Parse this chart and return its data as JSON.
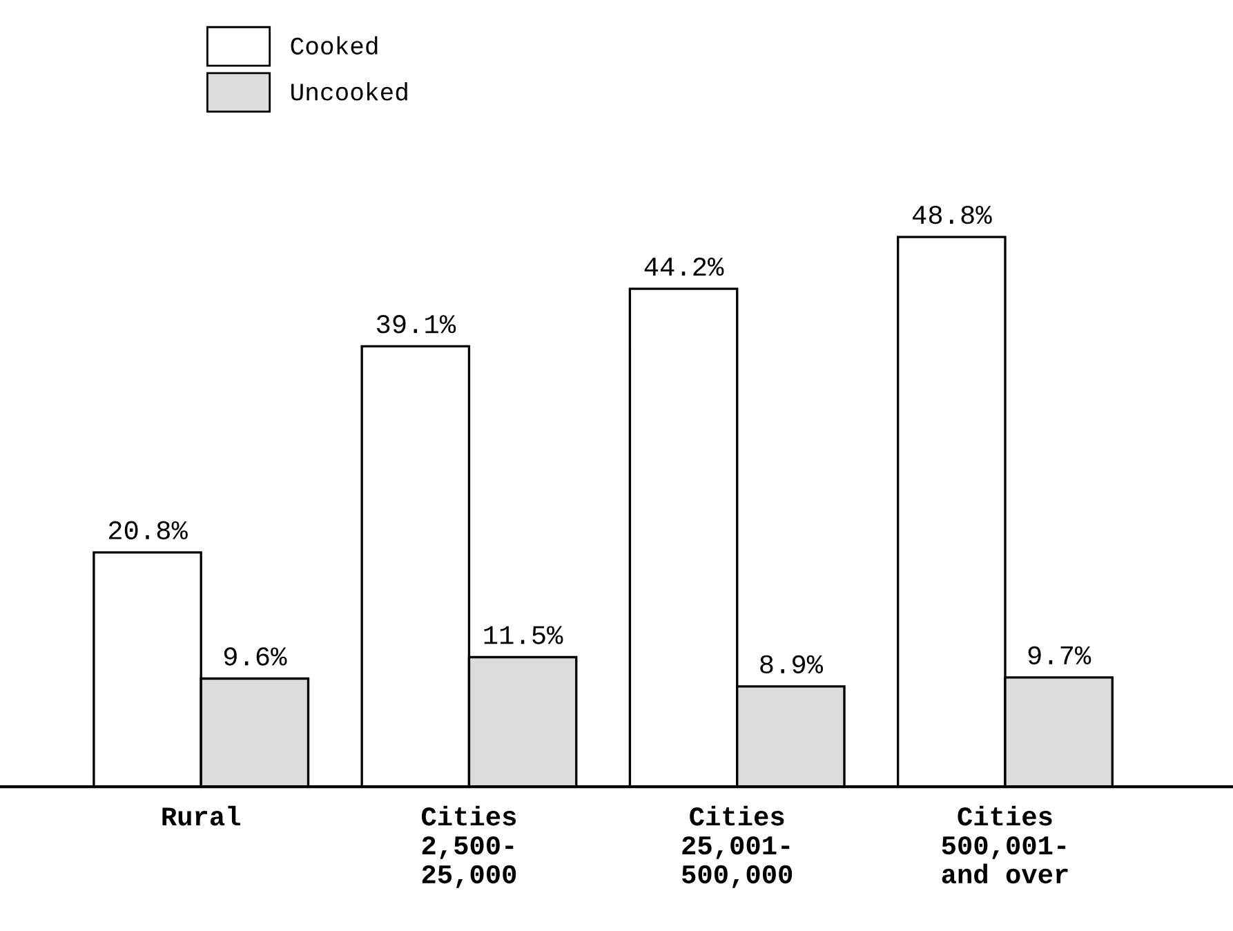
{
  "chart_data": {
    "type": "bar",
    "categories": [
      "Rural",
      "Cities\n2,500-\n25,000",
      "Cities\n25,001-\n500,000",
      "Cities\n500,001-\nand over"
    ],
    "series": [
      {
        "name": "Cooked",
        "color": "#ffffff",
        "values": [
          20.8,
          39.1,
          44.2,
          48.8
        ],
        "value_labels": [
          "20.8%",
          "39.1%",
          "44.2%",
          "48.8%"
        ]
      },
      {
        "name": "Uncooked",
        "color": "#dcdcdc",
        "values": [
          9.6,
          11.5,
          8.9,
          9.7
        ],
        "value_labels": [
          "9.6%",
          "11.5%",
          "8.9%",
          "9.7%"
        ]
      }
    ],
    "legend": "top left",
    "grid": false,
    "tick_labels": "x"
  }
}
